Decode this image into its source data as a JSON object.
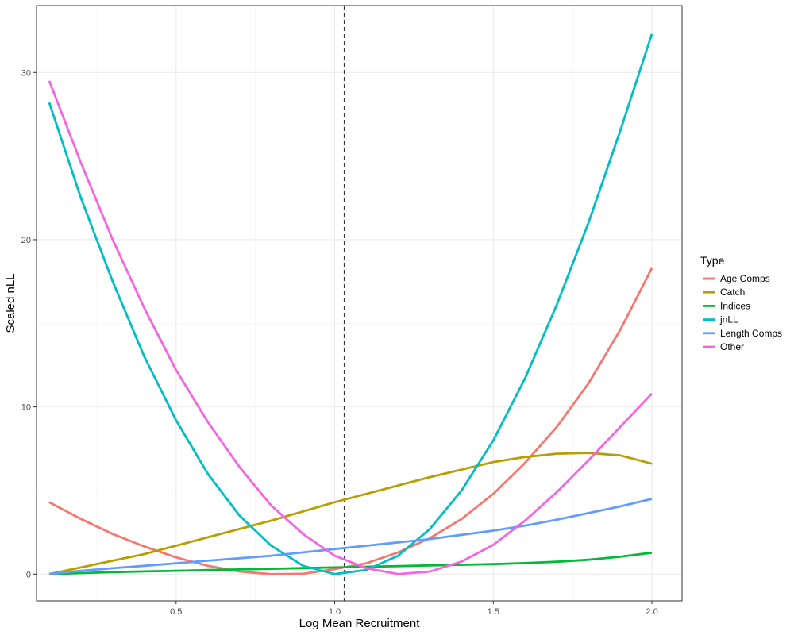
{
  "chart_data": {
    "type": "line",
    "xlabel": "Log Mean Recruitment",
    "ylabel": "Scaled nLL",
    "xlim": [
      0.06,
      2.095
    ],
    "ylim": [
      -1.6,
      34
    ],
    "x_ticks": [
      0.5,
      1.0,
      1.5,
      2.0
    ],
    "x_tick_labels": [
      "0.5",
      "1.0",
      "1.5",
      "2.0"
    ],
    "y_ticks": [
      0,
      10,
      20,
      30
    ],
    "y_tick_labels": [
      "0",
      "10",
      "20",
      "30"
    ],
    "grid": true,
    "reference_line": {
      "x": 1.03,
      "style": "dashed"
    },
    "legend": {
      "title": "Type",
      "position": "right"
    },
    "x": [
      0.1,
      0.2,
      0.3,
      0.4,
      0.5,
      0.6,
      0.7,
      0.8,
      0.9,
      1.0,
      1.1,
      1.2,
      1.3,
      1.4,
      1.5,
      1.6,
      1.7,
      1.8,
      1.9,
      2.0
    ],
    "series": [
      {
        "name": "Age Comps",
        "color": "#F8766D",
        "values": [
          4.3,
          3.3,
          2.4,
          1.65,
          1.0,
          0.5,
          0.15,
          0.0,
          0.02,
          0.3,
          0.65,
          1.3,
          2.15,
          3.3,
          4.8,
          6.65,
          8.8,
          11.4,
          14.6,
          18.3
        ]
      },
      {
        "name": "Catch",
        "color": "#B79F00",
        "values": [
          0.0,
          0.4,
          0.8,
          1.2,
          1.7,
          2.2,
          2.7,
          3.2,
          3.75,
          4.3,
          4.8,
          5.3,
          5.8,
          6.25,
          6.7,
          7.0,
          7.2,
          7.25,
          7.1,
          6.6
        ]
      },
      {
        "name": "Indices",
        "color": "#00BA38",
        "values": [
          0.0,
          0.06,
          0.12,
          0.16,
          0.2,
          0.24,
          0.28,
          0.32,
          0.36,
          0.4,
          0.44,
          0.48,
          0.52,
          0.56,
          0.6,
          0.66,
          0.74,
          0.86,
          1.04,
          1.28
        ]
      },
      {
        "name": "jnLL",
        "color": "#00BFC4",
        "values": [
          28.2,
          22.5,
          17.5,
          13.0,
          9.2,
          6.0,
          3.5,
          1.7,
          0.5,
          0.0,
          0.25,
          1.1,
          2.7,
          5.0,
          8.0,
          11.7,
          16.1,
          21.0,
          26.5,
          32.3
        ]
      },
      {
        "name": "Length Comps",
        "color": "#619CFF",
        "values": [
          0.0,
          0.2,
          0.35,
          0.5,
          0.65,
          0.8,
          0.95,
          1.1,
          1.3,
          1.5,
          1.7,
          1.9,
          2.1,
          2.35,
          2.6,
          2.9,
          3.25,
          3.65,
          4.05,
          4.5
        ]
      },
      {
        "name": "Other",
        "color": "#F564E3",
        "values": [
          29.5,
          24.6,
          20.0,
          15.9,
          12.2,
          9.1,
          6.4,
          4.1,
          2.4,
          1.1,
          0.35,
          0.0,
          0.15,
          0.75,
          1.75,
          3.2,
          4.9,
          6.8,
          8.8,
          10.8
        ]
      }
    ]
  }
}
